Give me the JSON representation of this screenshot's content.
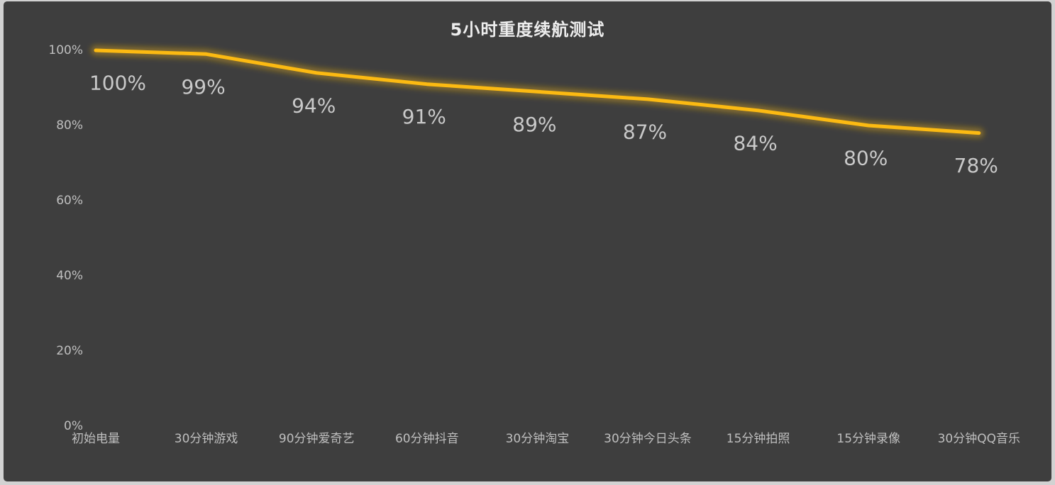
{
  "chart_data": {
    "type": "line",
    "title": "5小时重度续航测试",
    "categories": [
      "初始电量",
      "30分钟游戏",
      "90分钟爱奇艺",
      "60分钟抖音",
      "30分钟淘宝",
      "30分钟今日头条",
      "15分钟拍照",
      "15分钟录像",
      "30分钟QQ音乐"
    ],
    "values": [
      100,
      99,
      94,
      91,
      89,
      87,
      84,
      80,
      78
    ],
    "data_labels": [
      "100%",
      "99%",
      "94%",
      "91%",
      "89%",
      "87%",
      "84%",
      "80%",
      "78%"
    ],
    "xlabel": "",
    "ylabel": "",
    "ylim": [
      0,
      100
    ],
    "y_tick_values": [
      100,
      80,
      60,
      40,
      20,
      0
    ],
    "y_tick_labels": [
      "100%",
      "80%",
      "60%",
      "40%",
      "20%",
      "0%"
    ],
    "grid": false,
    "legend": false,
    "colors": {
      "line": "#fcba12",
      "line_glow": "#d9a512",
      "panel_background": "#3e3e3e",
      "frame": "#d2d2d2",
      "title_text": "#ededed",
      "axis_text": "#bfbfbf",
      "data_label_text": "#c9c9c9"
    }
  }
}
